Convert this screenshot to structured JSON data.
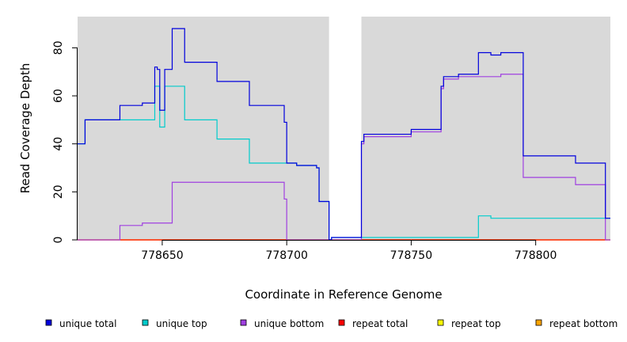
{
  "chart_data": {
    "type": "line",
    "title": "",
    "xlabel": "Coordinate in Reference Genome",
    "ylabel": "Read Coverage Depth",
    "xlim": [
      778616,
      778830
    ],
    "ylim": [
      0,
      93
    ],
    "xticks": [
      {
        "value": 778650,
        "label": "778650"
      },
      {
        "value": 778700,
        "label": "778700"
      },
      {
        "value": 778750,
        "label": "778750"
      },
      {
        "value": 778800,
        "label": "778800"
      }
    ],
    "yticks": [
      {
        "value": 0,
        "label": "0"
      },
      {
        "value": 20,
        "label": "20"
      },
      {
        "value": 40,
        "label": "40"
      },
      {
        "value": 60,
        "label": "60"
      },
      {
        "value": 80,
        "label": "80"
      }
    ],
    "shaded_regions": [
      {
        "x0": 778616,
        "x1": 778717,
        "color": "#d9d9d9"
      },
      {
        "x0": 778730,
        "x1": 778830,
        "color": "#d9d9d9"
      }
    ],
    "series": [
      {
        "name": "unique total",
        "color": "#0000dd",
        "steps": [
          [
            778616,
            40
          ],
          [
            778619,
            50
          ],
          [
            778633,
            56
          ],
          [
            778642,
            57
          ],
          [
            778647,
            72
          ],
          [
            778648,
            71
          ],
          [
            778649,
            54
          ],
          [
            778651,
            71
          ],
          [
            778654,
            88
          ],
          [
            778659,
            74
          ],
          [
            778672,
            66
          ],
          [
            778685,
            56
          ],
          [
            778699,
            49
          ],
          [
            778700,
            32
          ],
          [
            778704,
            31
          ],
          [
            778712,
            30
          ],
          [
            778713,
            16
          ],
          [
            778717,
            0
          ],
          [
            778718,
            1
          ],
          [
            778730,
            41
          ],
          [
            778731,
            44
          ],
          [
            778750,
            46
          ],
          [
            778762,
            64
          ],
          [
            778763,
            68
          ],
          [
            778769,
            69
          ],
          [
            778777,
            78
          ],
          [
            778782,
            77
          ],
          [
            778786,
            78
          ],
          [
            778795,
            35
          ],
          [
            778816,
            32
          ],
          [
            778828,
            9
          ],
          [
            778830,
            9
          ]
        ]
      },
      {
        "name": "unique top",
        "color": "#00cccc",
        "steps": [
          [
            778616,
            40
          ],
          [
            778619,
            50
          ],
          [
            778633,
            50
          ],
          [
            778647,
            64
          ],
          [
            778649,
            47
          ],
          [
            778651,
            64
          ],
          [
            778659,
            50
          ],
          [
            778672,
            42
          ],
          [
            778685,
            32
          ],
          [
            778700,
            32
          ],
          [
            778704,
            31
          ],
          [
            778712,
            30
          ],
          [
            778713,
            16
          ],
          [
            778717,
            0
          ],
          [
            778718,
            1
          ],
          [
            778730,
            1
          ],
          [
            778777,
            10
          ],
          [
            778782,
            9
          ],
          [
            778830,
            9
          ]
        ]
      },
      {
        "name": "unique bottom",
        "color": "#a040e0",
        "steps": [
          [
            778616,
            0
          ],
          [
            778633,
            6
          ],
          [
            778642,
            7
          ],
          [
            778654,
            24
          ],
          [
            778699,
            17
          ],
          [
            778700,
            0
          ],
          [
            778730,
            40
          ],
          [
            778731,
            43
          ],
          [
            778750,
            45
          ],
          [
            778762,
            63
          ],
          [
            778763,
            67
          ],
          [
            778769,
            68
          ],
          [
            778786,
            69
          ],
          [
            778795,
            26
          ],
          [
            778816,
            23
          ],
          [
            778828,
            0
          ],
          [
            778830,
            0
          ]
        ]
      },
      {
        "name": "repeat total",
        "color": "#ff0000",
        "steps": [
          [
            778616,
            0
          ],
          [
            778830,
            0
          ]
        ]
      },
      {
        "name": "repeat top",
        "color": "#ffff00",
        "steps": [
          [
            778616,
            0
          ],
          [
            778830,
            0
          ]
        ]
      },
      {
        "name": "repeat bottom",
        "color": "#ffa500",
        "steps": [
          [
            778616,
            0
          ],
          [
            778830,
            0
          ]
        ]
      }
    ],
    "legend": {
      "placement": "bottom"
    }
  }
}
